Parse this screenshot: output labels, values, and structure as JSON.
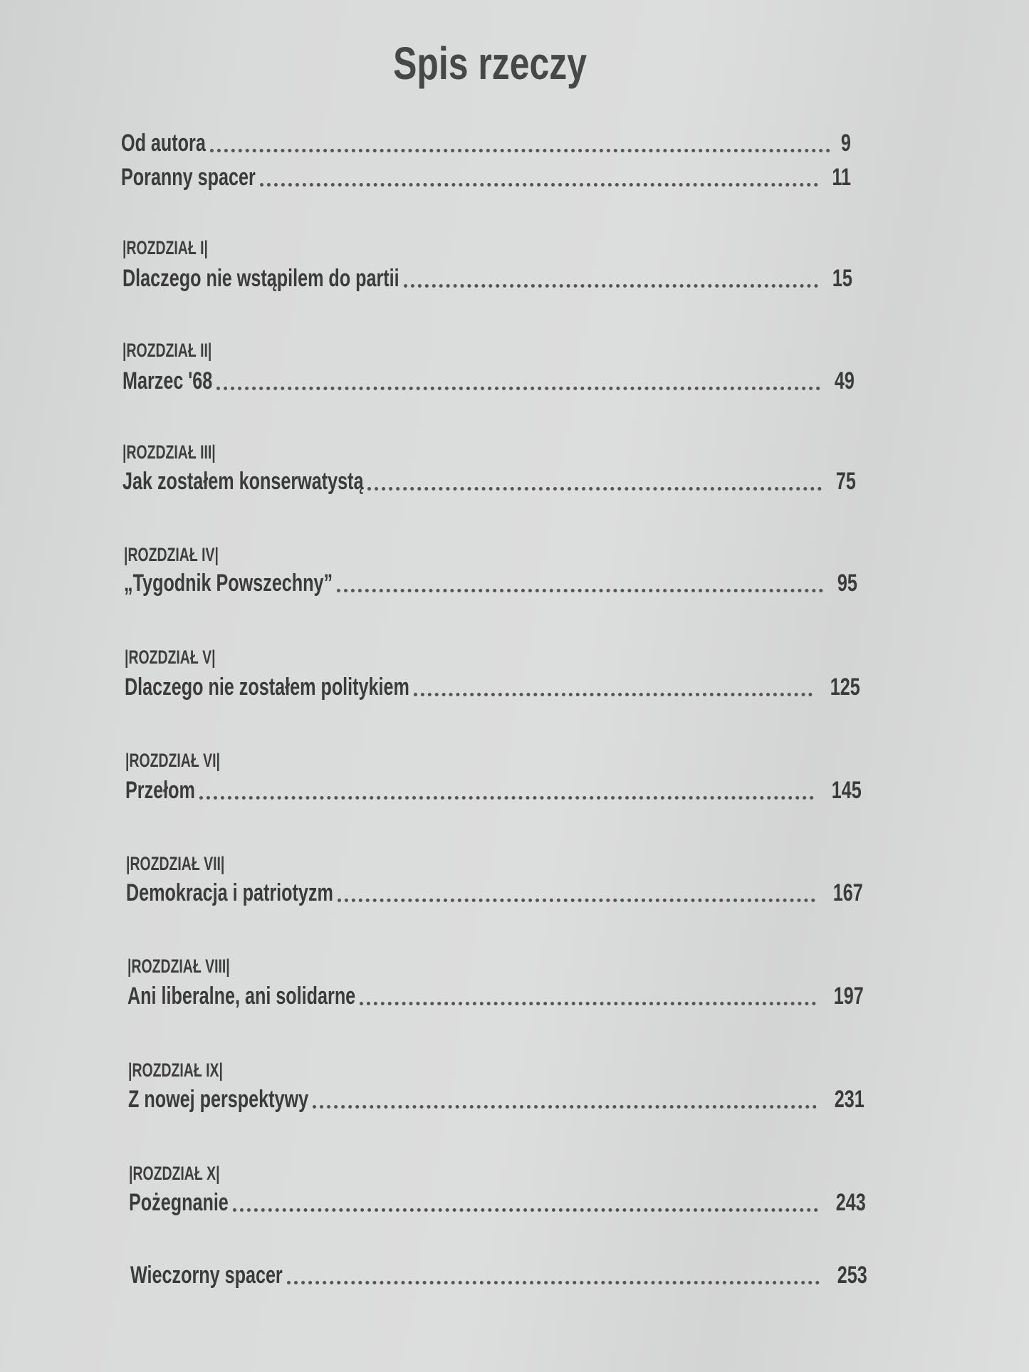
{
  "title": "Spis rzeczy",
  "entries": [
    {
      "label": "",
      "name": "Od autora",
      "page": "9"
    },
    {
      "label": "",
      "name": "Poranny spacer",
      "page": "11"
    },
    {
      "label": "|ROZDZIAŁ I|",
      "name": "Dlaczego nie wstąpilem do partii",
      "page": "15"
    },
    {
      "label": "|ROZDZIAŁ II|",
      "name": "Marzec '68",
      "page": "49"
    },
    {
      "label": "|ROZDZIAŁ III|",
      "name": "Jak zostałem konserwatystą",
      "page": "75"
    },
    {
      "label": "|ROZDZIAŁ IV|",
      "name": "„Tygodnik Powszechny”",
      "page": "95"
    },
    {
      "label": "|ROZDZIAŁ V|",
      "name": "Dlaczego nie zostałem politykiem",
      "page": "125"
    },
    {
      "label": "|ROZDZIAŁ VI|",
      "name": "Przełom",
      "page": "145"
    },
    {
      "label": "|ROZDZIAŁ VII|",
      "name": "Demokracja i patriotyzm",
      "page": "167"
    },
    {
      "label": "|ROZDZIAŁ VIII|",
      "name": "Ani liberalne, ani solidarne",
      "page": "197"
    },
    {
      "label": "|ROZDZIAŁ IX|",
      "name": "Z nowej perspektywy",
      "page": "231"
    },
    {
      "label": "|ROZDZIAŁ X|",
      "name": "Pożegnanie",
      "page": "243"
    },
    {
      "label": "",
      "name": "Wieczorny spacer",
      "page": "253"
    }
  ]
}
